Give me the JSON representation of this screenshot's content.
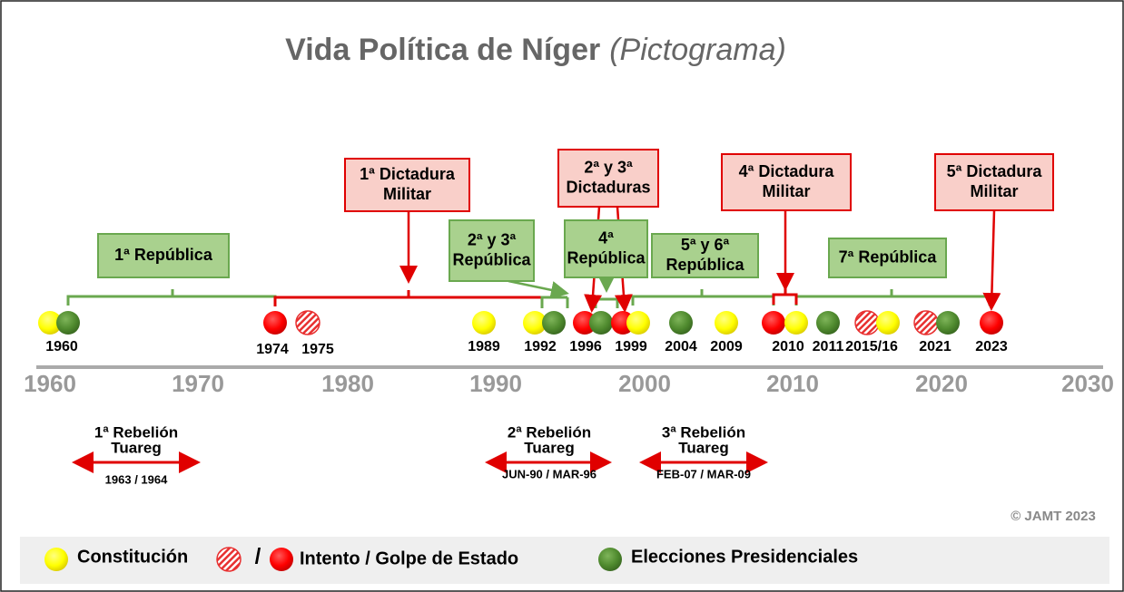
{
  "title": {
    "main": "Vida Política de Níger",
    "sub": "(Pictograma)"
  },
  "periods": [
    {
      "lines": [
        "1ª República"
      ]
    },
    {
      "lines": [
        "1ª Dictadura",
        "Militar"
      ]
    },
    {
      "lines": [
        "2ª y 3ª",
        "República"
      ]
    },
    {
      "lines": [
        "2ª y 3ª",
        "Dictaduras"
      ]
    },
    {
      "lines": [
        "4ª",
        "República"
      ]
    },
    {
      "lines": [
        "5ª y 6ª",
        "República"
      ]
    },
    {
      "lines": [
        "4ª Dictadura",
        "Militar"
      ]
    },
    {
      "lines": [
        "7ª República"
      ]
    },
    {
      "lines": [
        "5ª Dictadura",
        "Militar"
      ]
    }
  ],
  "events": [
    "1960",
    "1974",
    "1975",
    "1989",
    "1992",
    "1996",
    "1999",
    "2004",
    "2009",
    "2010",
    "2011",
    "2015/16",
    "2021",
    "2023"
  ],
  "axis": [
    "1960",
    "1970",
    "1980",
    "1990",
    "2000",
    "2010",
    "2020",
    "2030"
  ],
  "rebellions": [
    {
      "lines": [
        "1ª Rebelión",
        "Tuareg"
      ],
      "dates": "1963 / 1964"
    },
    {
      "lines": [
        "2ª Rebelión",
        "Tuareg"
      ],
      "dates": "JUN-90 / MAR-96"
    },
    {
      "lines": [
        "3ª Rebelión",
        "Tuareg"
      ],
      "dates": "FEB-07 / MAR-09"
    }
  ],
  "credit": "© JAMT 2023",
  "legend": [
    "Constitución",
    "/",
    "Intento / Golpe de Estado",
    "Elecciones Presidenciales"
  ]
}
